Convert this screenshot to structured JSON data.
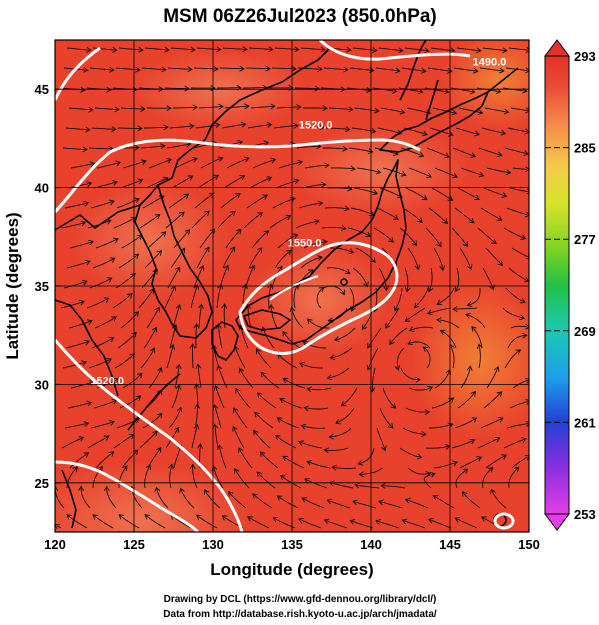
{
  "title": "MSM 06Z26Jul2023 (850.0hPa)",
  "x_axis": {
    "label": "Longitude (degrees)",
    "min": 120,
    "max": 150,
    "ticks": [
      120,
      125,
      130,
      135,
      140,
      145,
      150
    ],
    "tick_labels": [
      "120",
      "125",
      "130",
      "135",
      "140",
      "145",
      "150"
    ]
  },
  "y_axis": {
    "label": "Latitude  (degrees)",
    "min": 22.5,
    "max": 47.5,
    "ticks": [
      25,
      30,
      35,
      40,
      45
    ],
    "tick_labels": [
      "25",
      "30",
      "35",
      "40",
      "45"
    ]
  },
  "colorbar": {
    "min": 253,
    "max": 293,
    "ticks": [
      253,
      261,
      269,
      277,
      285,
      293
    ],
    "tick_labels": [
      "253",
      "261",
      "269",
      "277",
      "285",
      "293"
    ],
    "colors": [
      "#e43fe6",
      "#8a2fe0",
      "#2340d8",
      "#1da0e8",
      "#19c9b0",
      "#22c043",
      "#7ed321",
      "#d8e32b",
      "#f6c94a",
      "#f58a4b",
      "#ea4f34",
      "#e5312a"
    ]
  },
  "contours": [
    {
      "label": "1490.0",
      "lon": 147.5,
      "lat": 46.2
    },
    {
      "label": "1520.0",
      "lon": 136.5,
      "lat": 43.0
    },
    {
      "label": "1550.0",
      "lon": 135.8,
      "lat": 37.0
    },
    {
      "label": "1520.0",
      "lon": 123.3,
      "lat": 30.0
    }
  ],
  "credits": {
    "line1": "Drawing by DCL (https://www.gfd-dennou.org/library/dcl/)",
    "line2": "Data from http://database.rish.kyoto-u.ac.jp/arch/jmadata/"
  }
}
